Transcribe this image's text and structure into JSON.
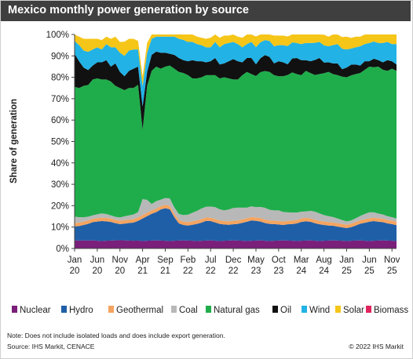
{
  "title": "Mexico monthly power generation by source",
  "note": "Note: Does not include isolated loads and does include export generation.",
  "source": "Source: IHS Markit, CENACE",
  "copyright": "© 2022 IHS Markit",
  "chart_data": {
    "type": "area",
    "stacked": true,
    "ylabel": "Share of generation",
    "xlabel": "",
    "ylim": [
      0,
      100
    ],
    "yticks": [
      "0%",
      "10%",
      "20%",
      "30%",
      "40%",
      "50%",
      "60%",
      "70%",
      "80%",
      "90%",
      "100%"
    ],
    "xticks": [
      {
        "label": [
          "Jan",
          "20"
        ],
        "index": 0
      },
      {
        "label": [
          "Jun",
          "20"
        ],
        "index": 5
      },
      {
        "label": [
          "Nov",
          "20"
        ],
        "index": 10
      },
      {
        "label": [
          "Apr",
          "21"
        ],
        "index": 15
      },
      {
        "label": [
          "Sep",
          "21"
        ],
        "index": 20
      },
      {
        "label": [
          "Feb",
          "22"
        ],
        "index": 25
      },
      {
        "label": [
          "Jul",
          "22"
        ],
        "index": 30
      },
      {
        "label": [
          "Dec",
          "22"
        ],
        "index": 35
      },
      {
        "label": [
          "May",
          "23"
        ],
        "index": 40
      },
      {
        "label": [
          "Oct",
          "23"
        ],
        "index": 45
      },
      {
        "label": [
          "Mar",
          "24"
        ],
        "index": 50
      },
      {
        "label": [
          "Aug",
          "24"
        ],
        "index": 55
      },
      {
        "label": [
          "Jan",
          "25"
        ],
        "index": 60
      },
      {
        "label": [
          "Jun",
          "25"
        ],
        "index": 65
      },
      {
        "label": [
          "Nov",
          "25"
        ],
        "index": 70
      }
    ],
    "x_start": "Jan 2020",
    "x_end": "Dec 2025",
    "legend_position": "bottom",
    "grid": false,
    "series": [
      {
        "name": "Nuclear",
        "color": "#7a1f7a",
        "values": [
          3.8,
          3.7,
          3.8,
          3.7,
          3.8,
          3.6,
          3.5,
          3.6,
          3.7,
          3.8,
          3.9,
          3.8,
          3.7,
          3.6,
          3.7,
          3.5,
          3.6,
          3.7,
          3.8,
          3.7,
          3.6,
          3.5,
          3.6,
          3.7,
          3.8,
          3.7,
          3.6,
          3.5,
          3.6,
          3.7,
          3.8,
          3.6,
          3.5,
          3.6,
          3.7,
          3.8,
          3.7,
          3.6,
          3.5,
          3.6,
          3.7,
          3.8,
          3.6,
          3.5,
          3.6,
          3.7,
          3.8,
          3.7,
          3.6,
          3.5,
          3.6,
          3.7,
          3.8,
          3.6,
          3.5,
          3.6,
          3.7,
          3.8,
          3.7,
          3.6,
          3.5,
          3.6,
          3.7,
          3.8,
          3.6,
          3.5,
          3.6,
          3.7,
          3.8,
          3.7,
          3.6,
          3.5
        ]
      },
      {
        "name": "Hydro",
        "color": "#1f5fa8",
        "values": [
          6.5,
          6.8,
          7.2,
          7.8,
          8.5,
          9.0,
          9.3,
          9.1,
          8.7,
          8.0,
          7.5,
          7.8,
          8.2,
          8.5,
          9.2,
          10.5,
          11.5,
          12.5,
          13.2,
          14.5,
          15.2,
          14.8,
          11.0,
          8.0,
          7.2,
          7.0,
          7.5,
          8.0,
          8.5,
          9.2,
          9.0,
          8.6,
          8.0,
          7.6,
          7.4,
          7.5,
          7.8,
          8.4,
          9.0,
          9.5,
          9.2,
          8.8,
          8.3,
          8.0,
          7.8,
          7.5,
          7.2,
          7.6,
          7.8,
          8.2,
          8.8,
          9.0,
          8.7,
          8.2,
          7.8,
          7.4,
          7.0,
          6.8,
          6.5,
          6.3,
          6.0,
          6.4,
          7.0,
          7.8,
          8.4,
          9.0,
          9.2,
          8.8,
          8.5,
          8.0,
          7.8,
          7.4
        ]
      },
      {
        "name": "Geothermal",
        "color": "#f4a460",
        "values": [
          1.6,
          1.6,
          1.6,
          1.6,
          1.6,
          1.6,
          1.6,
          1.6,
          1.6,
          1.6,
          1.6,
          1.6,
          1.6,
          1.6,
          1.6,
          1.6,
          1.6,
          1.6,
          1.6,
          1.6,
          1.6,
          1.6,
          1.6,
          1.6,
          1.6,
          1.6,
          1.6,
          1.6,
          1.6,
          1.6,
          1.6,
          1.6,
          1.6,
          1.6,
          1.6,
          1.6,
          1.6,
          1.6,
          1.6,
          1.6,
          1.6,
          1.6,
          1.6,
          1.6,
          1.6,
          1.6,
          1.6,
          1.6,
          1.6,
          1.6,
          1.6,
          1.6,
          1.6,
          1.6,
          1.6,
          1.6,
          1.6,
          1.6,
          1.6,
          1.6,
          1.6,
          1.6,
          1.6,
          1.6,
          1.6,
          1.6,
          1.6,
          1.6,
          1.6,
          1.6,
          1.6,
          1.6
        ]
      },
      {
        "name": "Coal",
        "color": "#b8b8b8",
        "values": [
          3.0,
          2.5,
          2.0,
          1.8,
          1.6,
          1.8,
          2.0,
          1.8,
          1.5,
          1.4,
          1.5,
          1.8,
          2.0,
          2.2,
          2.5,
          7.5,
          6.0,
          3.0,
          3.5,
          3.0,
          3.2,
          3.5,
          3.0,
          2.8,
          3.0,
          3.5,
          4.0,
          4.5,
          5.0,
          5.0,
          5.2,
          5.5,
          5.2,
          5.0,
          5.5,
          6.0,
          6.0,
          5.5,
          5.0,
          5.0,
          4.8,
          5.2,
          5.5,
          5.0,
          4.8,
          5.0,
          4.5,
          4.0,
          3.8,
          3.5,
          3.2,
          3.0,
          3.5,
          3.8,
          3.5,
          3.0,
          2.8,
          2.5,
          2.2,
          1.8,
          1.6,
          1.5,
          1.8,
          2.0,
          2.5,
          2.8,
          2.5,
          2.2,
          2.0,
          1.8,
          1.6,
          1.5
        ]
      },
      {
        "name": "Natural gas",
        "color": "#1fad4b",
        "values": [
          60.6,
          60.4,
          61.4,
          61.5,
          63.5,
          63.5,
          62.6,
          62.9,
          62.5,
          61.2,
          60.5,
          59.0,
          59.5,
          59.1,
          59.5,
          32.3,
          53.3,
          62.2,
          62.9,
          61.2,
          61.4,
          62.1,
          64.8,
          66.4,
          66.4,
          65.2,
          62.8,
          61.9,
          61.3,
          61.5,
          61.4,
          61.7,
          61.2,
          62.2,
          61.3,
          60.1,
          59.9,
          61.9,
          63.4,
          61.8,
          61.3,
          63.0,
          63.9,
          64.4,
          63.2,
          62.7,
          63.4,
          64.2,
          65.5,
          64.7,
          63.8,
          65.7,
          64.4,
          63.9,
          65.1,
          66.3,
          67.4,
          66.8,
          67.0,
          67.0,
          67.3,
          67.8,
          67.4,
          66.8,
          67.4,
          68.1,
          67.8,
          68.7,
          67.6,
          67.9,
          69.4,
          69.0
        ]
      },
      {
        "name": "Oil",
        "color": "#111111",
        "values": [
          15.5,
          12.5,
          8.5,
          7.0,
          6.5,
          7.5,
          8.0,
          9.0,
          7.0,
          10.5,
          7.5,
          6.5,
          8.0,
          9.0,
          8.5,
          11.0,
          6.5,
          7.5,
          7.0,
          7.5,
          6.5,
          5.5,
          6.5,
          6.5,
          6.0,
          6.5,
          8.5,
          8.0,
          7.5,
          6.0,
          6.5,
          8.0,
          6.5,
          6.5,
          8.0,
          9.5,
          8.5,
          6.0,
          6.5,
          7.5,
          5.5,
          6.5,
          7.5,
          7.0,
          5.5,
          7.0,
          6.5,
          5.0,
          6.5,
          7.5,
          7.0,
          5.0,
          5.5,
          7.0,
          7.5,
          5.0,
          4.5,
          5.0,
          5.5,
          3.5,
          4.5,
          5.0,
          4.5,
          3.5,
          4.0,
          2.5,
          4.0,
          3.0,
          3.5,
          5.0,
          3.5,
          3.0
        ]
      },
      {
        "name": "Wind",
        "color": "#22b2e6",
        "values": [
          6.0,
          7.5,
          8.0,
          8.5,
          7.5,
          7.0,
          6.0,
          7.5,
          9.0,
          7.5,
          9.0,
          9.5,
          9.5,
          9.0,
          8.0,
          9.5,
          9.0,
          7.5,
          7.0,
          7.5,
          7.5,
          8.0,
          8.5,
          9.0,
          9.5,
          9.0,
          8.5,
          8.0,
          7.5,
          7.0,
          6.5,
          7.5,
          8.0,
          9.0,
          8.5,
          8.0,
          8.0,
          7.0,
          6.5,
          7.5,
          8.0,
          7.5,
          7.0,
          7.5,
          8.0,
          7.5,
          8.0,
          8.5,
          7.5,
          7.0,
          7.5,
          8.0,
          8.5,
          8.0,
          7.5,
          8.0,
          7.5,
          8.5,
          9.0,
          9.5,
          8.5,
          7.5,
          8.0,
          9.0,
          8.0,
          8.5,
          8.0,
          8.0,
          9.0,
          8.5,
          8.0,
          9.5
        ]
      },
      {
        "name": "Solar",
        "color": "#f5c518",
        "values": [
          3.0,
          4.0,
          5.5,
          6.1,
          5.0,
          4.0,
          4.4,
          3.5,
          4.0,
          5.0,
          5.0,
          6.6,
          5.5,
          5.0,
          4.0,
          4.5,
          4.5,
          3.5,
          2.5,
          3.0,
          3.0,
          3.0,
          4.0,
          4.0,
          3.5,
          3.5,
          3.5,
          3.5,
          3.5,
          4.0,
          4.5,
          4.5,
          4.5,
          4.0,
          3.5,
          3.5,
          3.5,
          4.5,
          4.5,
          4.5,
          5.0,
          4.5,
          4.0,
          4.5,
          5.0,
          4.5,
          4.5,
          4.5,
          4.0,
          4.8,
          4.5,
          4.0,
          4.5,
          5.5,
          5.0,
          5.0,
          4.5,
          5.0,
          5.0,
          5.5,
          6.0,
          5.0,
          5.0,
          4.5,
          5.0,
          5.5,
          5.5,
          5.0,
          5.0,
          5.5,
          5.0,
          6.0
        ]
      },
      {
        "name": "Biomass",
        "color": "#e0245e",
        "values": [
          0,
          0,
          0,
          0,
          0,
          0,
          0,
          0,
          0,
          0,
          0,
          0,
          0,
          0,
          0,
          0,
          0,
          0,
          0,
          0,
          0,
          0,
          0,
          0,
          0,
          0,
          0,
          0,
          0,
          0,
          0,
          0,
          0,
          0,
          0,
          0,
          0,
          0,
          0,
          0,
          0,
          0,
          0,
          0,
          0,
          0,
          0,
          0,
          0,
          0,
          0,
          0,
          0,
          0,
          0,
          0,
          0,
          0,
          0,
          0,
          0,
          0,
          0,
          0,
          0,
          0,
          0,
          0,
          0,
          0,
          0,
          0
        ]
      }
    ]
  }
}
